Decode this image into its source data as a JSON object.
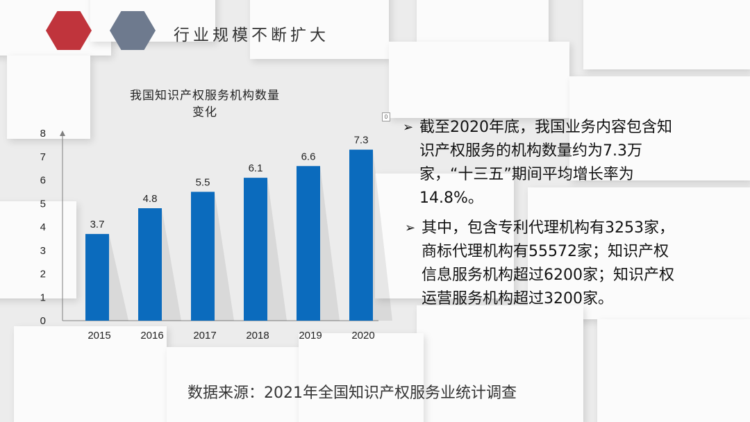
{
  "header": {
    "title": "行业规模不断扩大",
    "colors": {
      "hex_left": "#c0343c",
      "hex_right": "#6e7a8e"
    }
  },
  "chart_data": {
    "type": "bar",
    "title": "我国知识产权服务机构数量变化",
    "title_lines": [
      "我国知识产权服务机构数量",
      "变化"
    ],
    "categories": [
      "2015",
      "2016",
      "2017",
      "2018",
      "2019",
      "2020"
    ],
    "values": [
      3.7,
      4.8,
      5.5,
      6.1,
      6.6,
      7.3
    ],
    "yticks": [
      "0",
      "1",
      "2",
      "3",
      "4",
      "5",
      "6",
      "7",
      "8"
    ],
    "ylim": [
      0,
      8
    ],
    "xlabel": "",
    "ylabel": "",
    "grid": false,
    "bar_color": "#0b6bbd"
  },
  "small_mark": "0",
  "bullets": [
    {
      "icon": "arrow-bullet-icon",
      "lines": [
        "截至2020年底，我国业务内容包含知",
        "识产权服务的机构数量约为7.3万",
        "家，“十三五”期间平均增长率为",
        "14.8%。"
      ]
    },
    {
      "icon": "arrow-bullet-icon",
      "lines": [
        "其中，包含专利代理机构有3253家，",
        "商标代理机构有55572家；知识产权",
        "信息服务机构超过6200家；知识产权",
        "运营服务机构超过3200家。"
      ]
    }
  ],
  "source": "数据来源：2021年全国知识产权服务业统计调查"
}
